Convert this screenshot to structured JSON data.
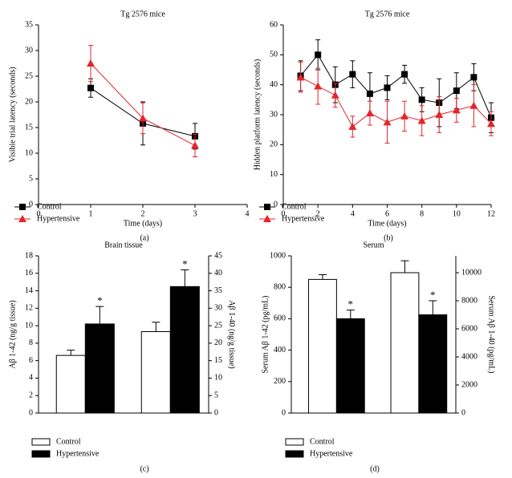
{
  "chart_data": [
    {
      "type": "line",
      "title": "Tg 2576 mice",
      "xlabel": "Time (days)",
      "ylabel": "Visible trial latency (seconds)",
      "caption": "(a)",
      "xlim": [
        0,
        4
      ],
      "xticks": [
        0,
        1,
        2,
        3,
        4
      ],
      "ylim": [
        0,
        35
      ],
      "yticks": [
        0,
        5,
        10,
        15,
        20,
        25,
        30,
        35
      ],
      "x": [
        1,
        2,
        3
      ],
      "series": [
        {
          "name": "Control",
          "color": "#000000",
          "marker": "square",
          "values": [
            22.7,
            15.8,
            13.3
          ],
          "errors": [
            1.8,
            4.2,
            2.5
          ]
        },
        {
          "name": "Hypertensive",
          "color": "#e2262b",
          "marker": "triangle",
          "values": [
            27.5,
            16.8,
            11.5
          ],
          "errors": [
            3.5,
            3.0,
            2.2
          ]
        }
      ]
    },
    {
      "type": "line",
      "title": "Tg 2576 mice",
      "xlabel": "Time (days)",
      "ylabel": "Hidden platform latency (seconds)",
      "caption": "(b)",
      "xlim": [
        0,
        12
      ],
      "xticks": [
        0,
        2,
        4,
        6,
        8,
        10,
        12
      ],
      "ylim": [
        0,
        60
      ],
      "yticks": [
        0,
        10,
        20,
        30,
        40,
        50,
        60
      ],
      "x": [
        1,
        2,
        3,
        4,
        5,
        6,
        7,
        8,
        9,
        10,
        11,
        12
      ],
      "series": [
        {
          "name": "Control",
          "color": "#000000",
          "marker": "square",
          "values": [
            43,
            50,
            40,
            43.5,
            37,
            39,
            43.5,
            35,
            34,
            38,
            42.5,
            29
          ],
          "errors": [
            5,
            5,
            6,
            4.5,
            7,
            4,
            3,
            4,
            8,
            6,
            4.5,
            5
          ]
        },
        {
          "name": "Hypertensive",
          "color": "#e2262b",
          "marker": "triangle",
          "values": [
            42.5,
            39.5,
            36.5,
            26,
            30.5,
            27.5,
            29.5,
            28,
            30,
            31.5,
            33,
            27
          ],
          "errors": [
            5,
            6,
            4,
            3.5,
            4,
            7,
            5,
            5,
            6,
            4,
            7,
            4
          ]
        }
      ]
    },
    {
      "type": "bar",
      "title": "Brain tissue",
      "ylabel": "Aβ 1-42 (ng/g tissue)",
      "y2label": "Aβ 1-40 (ng/g tissue)",
      "caption": "(c)",
      "ylim": [
        0,
        18
      ],
      "yticks": [
        0,
        2,
        4,
        6,
        8,
        10,
        12,
        14,
        16,
        18
      ],
      "y2lim": [
        0,
        45
      ],
      "y2ticks": [
        0,
        5,
        10,
        15,
        20,
        25,
        30,
        35,
        40,
        45
      ],
      "categories": [
        null,
        null
      ],
      "axes": [
        "y",
        "y2"
      ],
      "series": [
        {
          "name": "Control",
          "color": "#ffffff",
          "values": [
            6.6,
            23.3
          ],
          "errors": [
            0.6,
            2.7
          ]
        },
        {
          "name": "Hypertensive",
          "color": "#000000",
          "values": [
            10.2,
            36.2
          ],
          "errors": [
            2.0,
            4.8
          ],
          "significance": [
            "*",
            "*"
          ]
        }
      ]
    },
    {
      "type": "bar",
      "title": "Serum",
      "ylabel": "Serum Aβ 1-42 (pg/mL)",
      "y2label": "Serum Aβ 1-40 (pg/mL)",
      "caption": "(d)",
      "ylim": [
        0,
        1000
      ],
      "yticks": [
        0,
        200,
        400,
        600,
        800,
        1000
      ],
      "y2lim": [
        0,
        11200
      ],
      "y2ticks": [
        0,
        2000,
        4000,
        6000,
        8000,
        10000
      ],
      "categories": [
        null,
        null
      ],
      "axes": [
        "y",
        "y2"
      ],
      "series": [
        {
          "name": "Control",
          "color": "#ffffff",
          "values": [
            850,
            10000
          ],
          "errors": [
            30,
            850
          ]
        },
        {
          "name": "Hypertensive",
          "color": "#000000",
          "values": [
            600,
            7000
          ],
          "errors": [
            55,
            1000
          ],
          "significance": [
            "*",
            "*"
          ]
        }
      ]
    }
  ]
}
